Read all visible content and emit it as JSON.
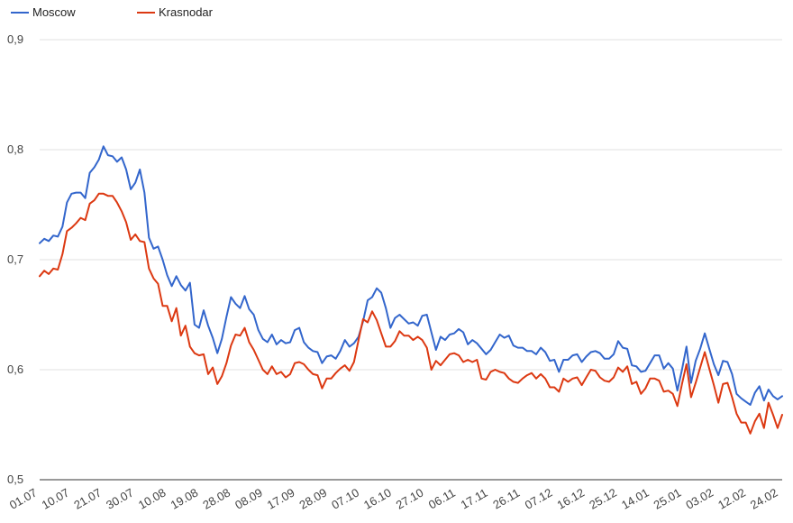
{
  "chart_data": {
    "type": "line",
    "title": "",
    "xlabel": "",
    "ylabel": "",
    "ylim": [
      0.5,
      0.9
    ],
    "yticks": [
      "0,5",
      "0,6",
      "0,7",
      "0,8",
      "0,9"
    ],
    "ytick_values": [
      0.5,
      0.6,
      0.7,
      0.8,
      0.9
    ],
    "grid": true,
    "legend_position": "top-left",
    "xtick_labels": [
      "01.07",
      "10.07",
      "21.07",
      "30.07",
      "10.08",
      "19.08",
      "28.08",
      "08.09",
      "17.09",
      "28.09",
      "07.10",
      "16.10",
      "27.10",
      "06.11",
      "17.11",
      "26.11",
      "07.12",
      "16.12",
      "25.12",
      "14.01",
      "25.01",
      "03.02",
      "12.02",
      "24.02"
    ],
    "series": [
      {
        "name": "Moscow",
        "color": "#3366cc",
        "values": [
          0.715,
          0.719,
          0.717,
          0.722,
          0.721,
          0.73,
          0.752,
          0.76,
          0.761,
          0.761,
          0.756,
          0.779,
          0.784,
          0.791,
          0.803,
          0.795,
          0.794,
          0.789,
          0.793,
          0.782,
          0.764,
          0.77,
          0.782,
          0.761,
          0.72,
          0.71,
          0.712,
          0.7,
          0.686,
          0.676,
          0.685,
          0.677,
          0.672,
          0.679,
          0.641,
          0.638,
          0.654,
          0.64,
          0.629,
          0.615,
          0.628,
          0.648,
          0.666,
          0.66,
          0.656,
          0.667,
          0.655,
          0.65,
          0.636,
          0.628,
          0.625,
          0.632,
          0.623,
          0.627,
          0.624,
          0.625,
          0.636,
          0.638,
          0.625,
          0.62,
          0.617,
          0.616,
          0.606,
          0.612,
          0.613,
          0.61,
          0.617,
          0.627,
          0.621,
          0.624,
          0.63,
          0.644,
          0.663,
          0.666,
          0.674,
          0.67,
          0.656,
          0.638,
          0.647,
          0.65,
          0.646,
          0.642,
          0.643,
          0.64,
          0.649,
          0.65,
          0.634,
          0.618,
          0.63,
          0.627,
          0.632,
          0.633,
          0.637,
          0.634,
          0.623,
          0.627,
          0.624,
          0.619,
          0.614,
          0.618,
          0.625,
          0.632,
          0.629,
          0.631,
          0.622,
          0.62,
          0.62,
          0.617,
          0.617,
          0.614,
          0.62,
          0.616,
          0.608,
          0.609,
          0.598,
          0.609,
          0.609,
          0.613,
          0.614,
          0.607,
          0.612,
          0.616,
          0.617,
          0.615,
          0.61,
          0.61,
          0.614,
          0.626,
          0.62,
          0.619,
          0.604,
          0.603,
          0.598,
          0.599,
          0.606,
          0.613,
          0.613,
          0.601,
          0.606,
          0.601,
          0.581,
          0.6,
          0.621,
          0.588,
          0.608,
          0.619,
          0.633,
          0.619,
          0.605,
          0.595,
          0.608,
          0.607,
          0.596,
          0.578,
          0.574,
          0.571,
          0.568,
          0.579,
          0.585,
          0.572,
          0.582,
          0.576,
          0.573,
          0.576
        ]
      },
      {
        "name": "Krasnodar",
        "color": "#dc3912",
        "values": [
          0.685,
          0.69,
          0.687,
          0.692,
          0.691,
          0.705,
          0.726,
          0.729,
          0.733,
          0.738,
          0.736,
          0.751,
          0.754,
          0.76,
          0.76,
          0.758,
          0.758,
          0.752,
          0.744,
          0.734,
          0.718,
          0.723,
          0.717,
          0.716,
          0.692,
          0.683,
          0.678,
          0.658,
          0.658,
          0.644,
          0.656,
          0.631,
          0.64,
          0.621,
          0.615,
          0.613,
          0.614,
          0.596,
          0.602,
          0.587,
          0.594,
          0.606,
          0.622,
          0.632,
          0.631,
          0.638,
          0.625,
          0.618,
          0.609,
          0.6,
          0.596,
          0.603,
          0.596,
          0.598,
          0.593,
          0.596,
          0.606,
          0.607,
          0.605,
          0.6,
          0.596,
          0.595,
          0.583,
          0.592,
          0.592,
          0.597,
          0.601,
          0.604,
          0.599,
          0.607,
          0.627,
          0.646,
          0.643,
          0.653,
          0.645,
          0.633,
          0.621,
          0.621,
          0.626,
          0.635,
          0.631,
          0.631,
          0.627,
          0.63,
          0.627,
          0.62,
          0.6,
          0.608,
          0.604,
          0.609,
          0.614,
          0.615,
          0.613,
          0.607,
          0.609,
          0.607,
          0.609,
          0.592,
          0.591,
          0.598,
          0.6,
          0.598,
          0.597,
          0.592,
          0.589,
          0.588,
          0.592,
          0.595,
          0.597,
          0.592,
          0.596,
          0.592,
          0.584,
          0.584,
          0.58,
          0.592,
          0.589,
          0.592,
          0.593,
          0.586,
          0.593,
          0.6,
          0.599,
          0.593,
          0.59,
          0.589,
          0.593,
          0.602,
          0.598,
          0.603,
          0.587,
          0.589,
          0.578,
          0.583,
          0.592,
          0.592,
          0.59,
          0.58,
          0.581,
          0.578,
          0.567,
          0.587,
          0.605,
          0.575,
          0.588,
          0.602,
          0.616,
          0.601,
          0.586,
          0.57,
          0.587,
          0.588,
          0.575,
          0.56,
          0.552,
          0.552,
          0.542,
          0.553,
          0.56,
          0.547,
          0.57,
          0.559,
          0.547,
          0.559
        ]
      }
    ]
  }
}
